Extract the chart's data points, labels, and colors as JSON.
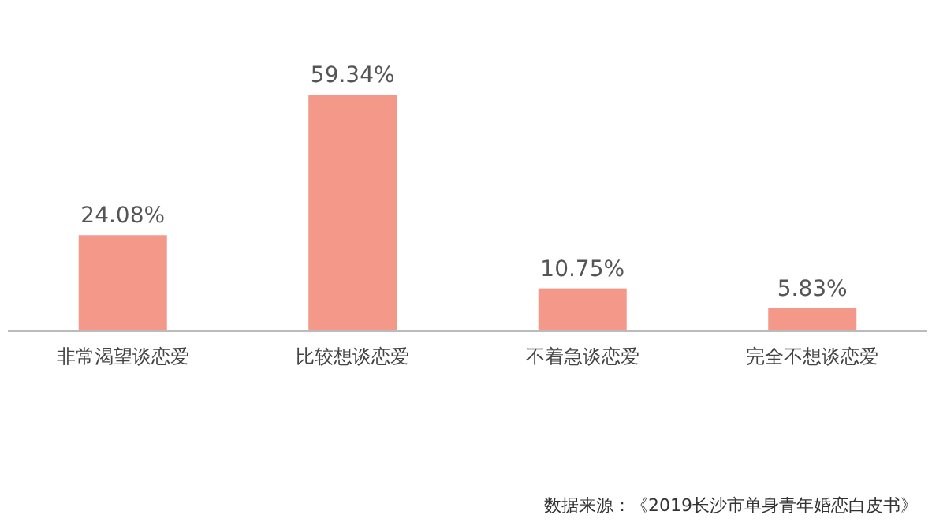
{
  "chart_data": {
    "type": "bar",
    "categories": [
      "非常渴望谈恋爱",
      "比较想谈恋爱",
      "不着急谈恋爱",
      "完全不想谈恋爱"
    ],
    "values": [
      24.08,
      59.34,
      10.75,
      5.83
    ],
    "value_labels": [
      "24.08%",
      "59.34%",
      "10.75%",
      "5.83%"
    ],
    "color": "#f4998a",
    "annotations": [
      "数据来源：《2019长沙市单身青年婚恋白皮书》"
    ]
  }
}
